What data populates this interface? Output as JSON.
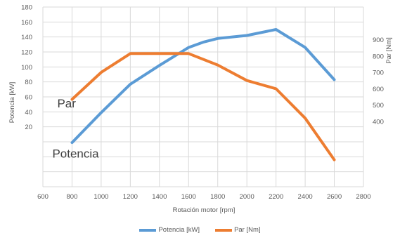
{
  "chart_data": {
    "type": "line",
    "xlabel": "Rotación motor [rpm]",
    "ylabel_left": "Potencia [kW]",
    "ylabel_right": "Par [Nm]",
    "xlim": [
      600,
      2800
    ],
    "x_ticks": [
      "600",
      "800",
      "1000",
      "1200",
      "1400",
      "1600",
      "1800",
      "2000",
      "2200",
      "2400",
      "2600",
      "2800"
    ],
    "y_left_ticks": [
      "20",
      "40",
      "60",
      "80",
      "100",
      "120",
      "140",
      "160",
      "180"
    ],
    "y_right_ticks": [
      "400",
      "500",
      "600",
      "700",
      "800",
      "900"
    ],
    "ylim_left": [
      -60,
      180
    ],
    "ylim_right": [
      0,
      1100
    ],
    "grid": true,
    "legend_position": "bottom",
    "series": [
      {
        "name": "Potencia [kW]",
        "axis": "left",
        "color": "#5B9BD5",
        "x": [
          800,
          1000,
          1200,
          1400,
          1600,
          1700,
          1800,
          2000,
          2200,
          2400,
          2600
        ],
        "values": [
          -1,
          39,
          77,
          102,
          126,
          133,
          138,
          142,
          150,
          126,
          83
        ]
      },
      {
        "name": "Par [Nm]",
        "axis": "right",
        "color": "#ED7D31",
        "x": [
          800,
          1000,
          1200,
          1400,
          1600,
          1800,
          2000,
          2200,
          2400,
          2600
        ],
        "values": [
          535,
          700,
          815,
          815,
          815,
          745,
          650,
          600,
          420,
          165
        ]
      }
    ],
    "annotations": [
      {
        "text": "Par",
        "x": 800,
        "y_left": 46
      },
      {
        "text": "Potencia",
        "x": 800,
        "y_left": -21
      }
    ]
  }
}
